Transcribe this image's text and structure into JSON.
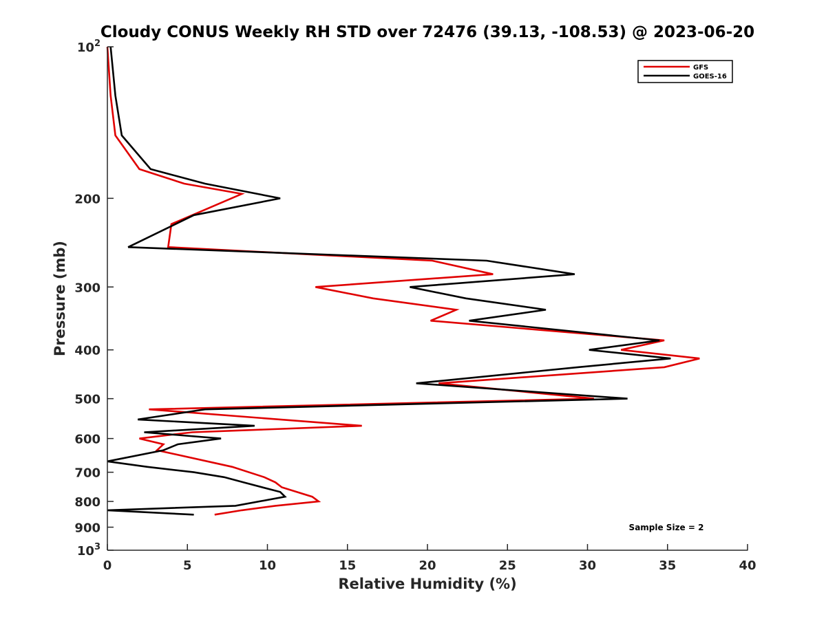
{
  "chart_data": {
    "type": "line",
    "title": "Cloudy CONUS Weekly RH STD over 72476 (39.13, -108.53) @ 2023-06-20",
    "xlabel": "Relative Humidity (%)",
    "ylabel": "Pressure (mb)",
    "xlim": [
      0,
      40
    ],
    "ylim": [
      100,
      1000
    ],
    "yscale": "log",
    "y_reversed": true,
    "grid": false,
    "legend_position": "top-right",
    "x_ticks": [
      0,
      5,
      10,
      15,
      20,
      25,
      30,
      35,
      40
    ],
    "x_tick_labels": [
      "0",
      "5",
      "10",
      "15",
      "20",
      "25",
      "30",
      "35",
      "40"
    ],
    "y_ticks": [
      100,
      200,
      300,
      400,
      500,
      600,
      700,
      800,
      900,
      1000
    ],
    "y_tick_labels": [
      {
        "base": "10",
        "exp": "2"
      },
      {
        "base": "200",
        "exp": ""
      },
      {
        "base": "300",
        "exp": ""
      },
      {
        "base": "400",
        "exp": ""
      },
      {
        "base": "500",
        "exp": ""
      },
      {
        "base": "600",
        "exp": ""
      },
      {
        "base": "700",
        "exp": ""
      },
      {
        "base": "800",
        "exp": ""
      },
      {
        "base": "900",
        "exp": ""
      },
      {
        "base": "10",
        "exp": "3"
      }
    ],
    "series": [
      {
        "name": "GFS",
        "color": "#e00000",
        "points": [
          [
            0.0,
            100
          ],
          [
            0.2,
            125
          ],
          [
            0.5,
            150
          ],
          [
            2.0,
            175
          ],
          [
            4.8,
            187
          ],
          [
            8.4,
            196
          ],
          [
            4.0,
            225
          ],
          [
            3.8,
            250
          ],
          [
            20.3,
            266
          ],
          [
            24.1,
            283
          ],
          [
            13.0,
            300
          ],
          [
            16.6,
            316
          ],
          [
            21.8,
            333
          ],
          [
            20.2,
            350
          ],
          [
            34.8,
            383
          ],
          [
            32.1,
            400
          ],
          [
            37.0,
            416
          ],
          [
            34.8,
            433
          ],
          [
            20.7,
            466
          ],
          [
            30.4,
            500
          ],
          [
            2.6,
            525
          ],
          [
            15.9,
            566
          ],
          [
            5.3,
            583
          ],
          [
            2.0,
            600
          ],
          [
            3.5,
            616
          ],
          [
            3.1,
            633
          ],
          [
            7.8,
            683
          ],
          [
            9.8,
            716
          ],
          [
            10.5,
            733
          ],
          [
            10.9,
            750
          ],
          [
            12.8,
            783
          ],
          [
            13.2,
            800
          ],
          [
            10.5,
            816
          ],
          [
            8.4,
            833
          ],
          [
            6.7,
            850
          ]
        ]
      },
      {
        "name": "GOES-16",
        "color": "#000000",
        "points": [
          [
            0.2,
            100
          ],
          [
            0.5,
            125
          ],
          [
            0.9,
            150
          ],
          [
            2.7,
            175
          ],
          [
            6.1,
            187
          ],
          [
            10.8,
            200
          ],
          [
            5.4,
            216
          ],
          [
            1.3,
            250
          ],
          [
            23.7,
            266
          ],
          [
            29.2,
            283
          ],
          [
            18.9,
            300
          ],
          [
            22.4,
            316
          ],
          [
            27.4,
            333
          ],
          [
            22.6,
            350
          ],
          [
            34.5,
            383
          ],
          [
            30.1,
            400
          ],
          [
            35.2,
            416
          ],
          [
            29.4,
            433
          ],
          [
            19.3,
            466
          ],
          [
            32.5,
            500
          ],
          [
            6.1,
            525
          ],
          [
            1.9,
            550
          ],
          [
            9.2,
            566
          ],
          [
            2.3,
            583
          ],
          [
            7.1,
            600
          ],
          [
            4.4,
            616
          ],
          [
            3.5,
            633
          ],
          [
            0.0,
            666
          ],
          [
            2.5,
            683
          ],
          [
            5.4,
            700
          ],
          [
            7.3,
            716
          ],
          [
            8.5,
            733
          ],
          [
            10.8,
            766
          ],
          [
            11.1,
            783
          ],
          [
            8.0,
            816
          ],
          [
            0.0,
            833
          ],
          [
            5.4,
            850
          ]
        ]
      }
    ],
    "annotations": [
      {
        "text": "Sample Size = 2",
        "x": 38,
        "y": 900
      }
    ]
  }
}
